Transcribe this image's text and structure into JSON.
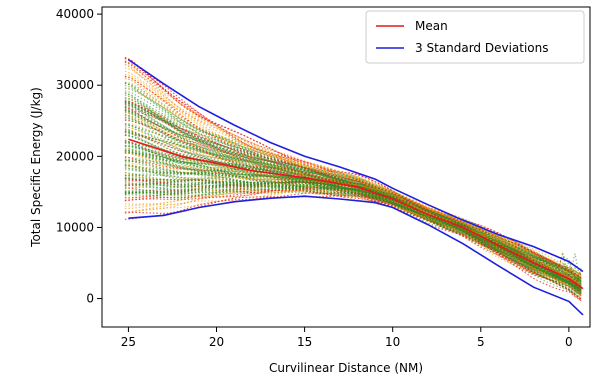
{
  "chart_data": {
    "type": "line",
    "xlabel": "Curvilinear Distance (NM)",
    "ylabel": "Total Specific Energy (J/kg)",
    "xlim": [
      26.5,
      -1.2
    ],
    "ylim": [
      -4000,
      41000
    ],
    "x_ticks": [
      25,
      20,
      15,
      10,
      5,
      0
    ],
    "y_ticks": [
      0,
      10000,
      20000,
      30000,
      40000
    ],
    "grid": false,
    "legend_placement": "top-right",
    "series": [
      {
        "name": "Mean",
        "color": "#e41a1c",
        "x": [
          25,
          22,
          20,
          18,
          15,
          12,
          10,
          8,
          6,
          4,
          2,
          0,
          -0.8
        ],
        "y": [
          22400,
          20000,
          19000,
          18000,
          17000,
          15700,
          14000,
          11800,
          10000,
          7500,
          5000,
          2800,
          1400
        ]
      },
      {
        "name": "3 Standard Deviations",
        "color": "#1f1fdf",
        "x": [
          25,
          23,
          21,
          19,
          17,
          15,
          13,
          11,
          10,
          8,
          6,
          4,
          2,
          0,
          -0.8
        ],
        "y": [
          33600,
          30200,
          27000,
          24400,
          22000,
          20000,
          18500,
          16800,
          15500,
          13200,
          11000,
          9000,
          7300,
          5200,
          3800
        ]
      },
      {
        "name": "3 Standard Deviations",
        "color": "#1f1fdf",
        "x": [
          25,
          23,
          21,
          19,
          17,
          15,
          13,
          11,
          10,
          8,
          6,
          4,
          2,
          0,
          -0.8
        ],
        "y": [
          11300,
          11700,
          12800,
          13600,
          14100,
          14400,
          14000,
          13500,
          12800,
          10400,
          7700,
          4600,
          1600,
          -400,
          -2300
        ]
      }
    ],
    "trajectory_color_bands": [
      "#e8231e",
      "#f39c12",
      "#2e8b22"
    ]
  }
}
